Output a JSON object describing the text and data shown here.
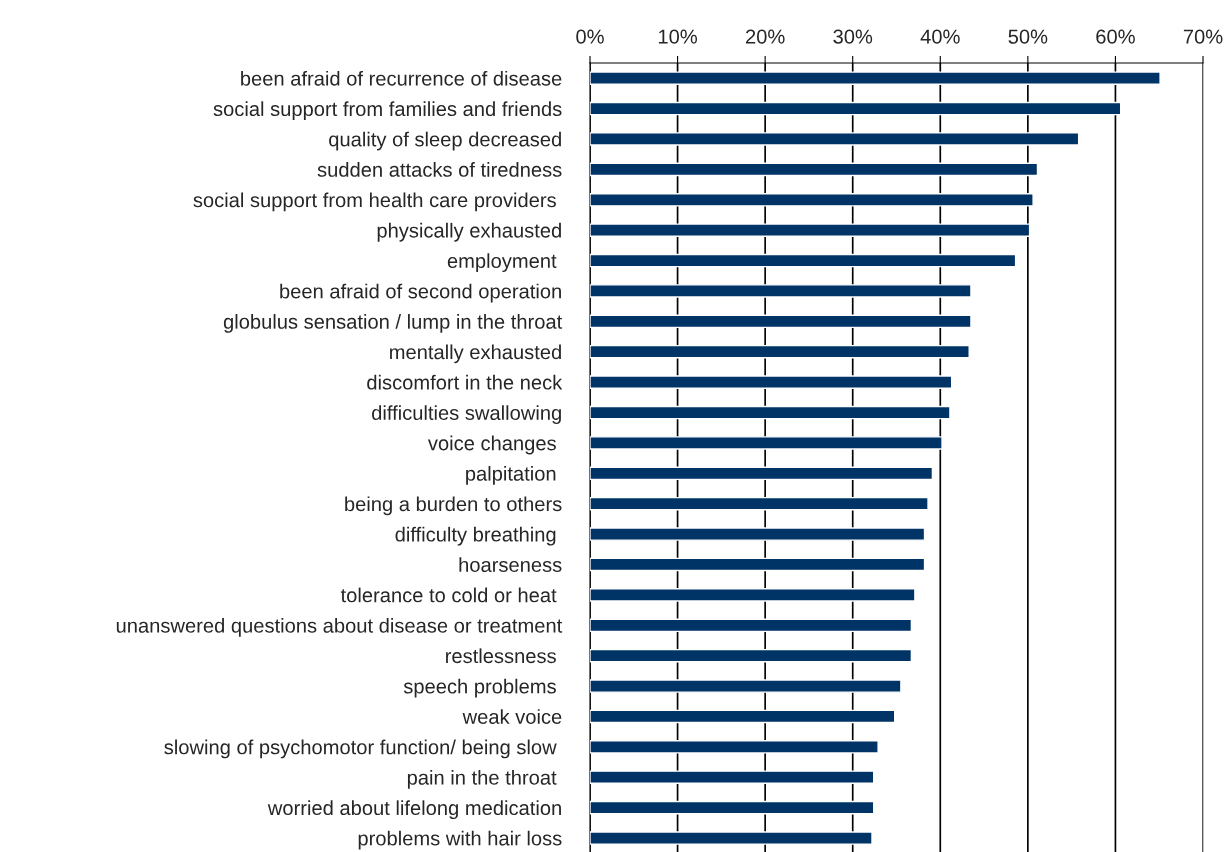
{
  "chart_data": {
    "type": "bar",
    "orientation": "horizontal",
    "color": "#003366",
    "grid": "x",
    "categories": [
      "been afraid of recurrence of disease",
      "social support from families and friends",
      "quality of sleep decreased",
      "sudden attacks of tiredness",
      "social support from health care providers ",
      "physically exhausted",
      "employment ",
      "been afraid of second operation",
      "globulus sensation / lump in the throat",
      "mentally exhausted",
      "discomfort in the neck",
      "difficulties swallowing",
      "voice changes ",
      "palpitation ",
      "being a burden to others",
      "difficulty breathing ",
      "hoarseness",
      "tolerance to cold or heat ",
      "unanswered questions about disease or treatment",
      "restlessness ",
      "speech problems ",
      "weak voice",
      "slowing of psychomotor function/ being slow ",
      "pain in the throat ",
      "worried about lifelong medication",
      "problems with hair loss"
    ],
    "values": [
      65.1,
      60.6,
      55.8,
      51.1,
      50.6,
      50.2,
      48.6,
      43.5,
      43.5,
      43.3,
      41.3,
      41.1,
      40.2,
      39.1,
      38.6,
      38.2,
      38.2,
      37.1,
      36.7,
      36.7,
      35.5,
      34.8,
      32.9,
      32.4,
      32.4,
      32.2
    ],
    "xlim": [
      0,
      70
    ],
    "xticks": [
      {
        "value": 0,
        "label": "0%"
      },
      {
        "value": 10,
        "label": "10%"
      },
      {
        "value": 20,
        "label": "20%"
      },
      {
        "value": 30,
        "label": "30%"
      },
      {
        "value": 40,
        "label": "40%"
      },
      {
        "value": 50,
        "label": "50%"
      },
      {
        "value": 60,
        "label": "60%"
      },
      {
        "value": 70,
        "label": "70%"
      }
    ]
  }
}
